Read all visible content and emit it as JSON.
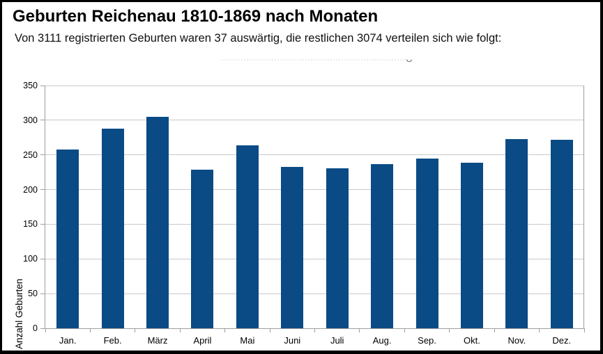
{
  "window": {
    "background": "#ffffff",
    "border_color": "#000000"
  },
  "header": {
    "title": "Geburten Reichenau 1810-1869 nach Monaten",
    "subtitle": "Von 3111 registrierten Geburten waren 37 auswärtig, die restlichen 3074 verteilen sich wie folgt:"
  },
  "artifact": {
    "stray_glyph": "◡"
  },
  "chart_data": {
    "type": "bar",
    "categories": [
      "Jan.",
      "Feb.",
      "März",
      "April",
      "Mai",
      "Juni",
      "Juli",
      "Aug.",
      "Sep.",
      "Okt.",
      "Nov.",
      "Dez."
    ],
    "values": [
      258,
      288,
      305,
      229,
      264,
      233,
      231,
      237,
      245,
      239,
      273,
      272
    ],
    "total_shown": 3074,
    "xlabel": "",
    "ylabel": "Anzahl Geburten",
    "ylim": [
      0,
      350
    ],
    "ytick_step": 50,
    "yticks": [
      0,
      50,
      100,
      150,
      200,
      250,
      300,
      350
    ],
    "grid": true,
    "legend": "none",
    "bar_color": "#0a4a85",
    "grid_color": "#c9c9c9",
    "axis_color": "#9e9e9e",
    "text_color": "#000000"
  }
}
